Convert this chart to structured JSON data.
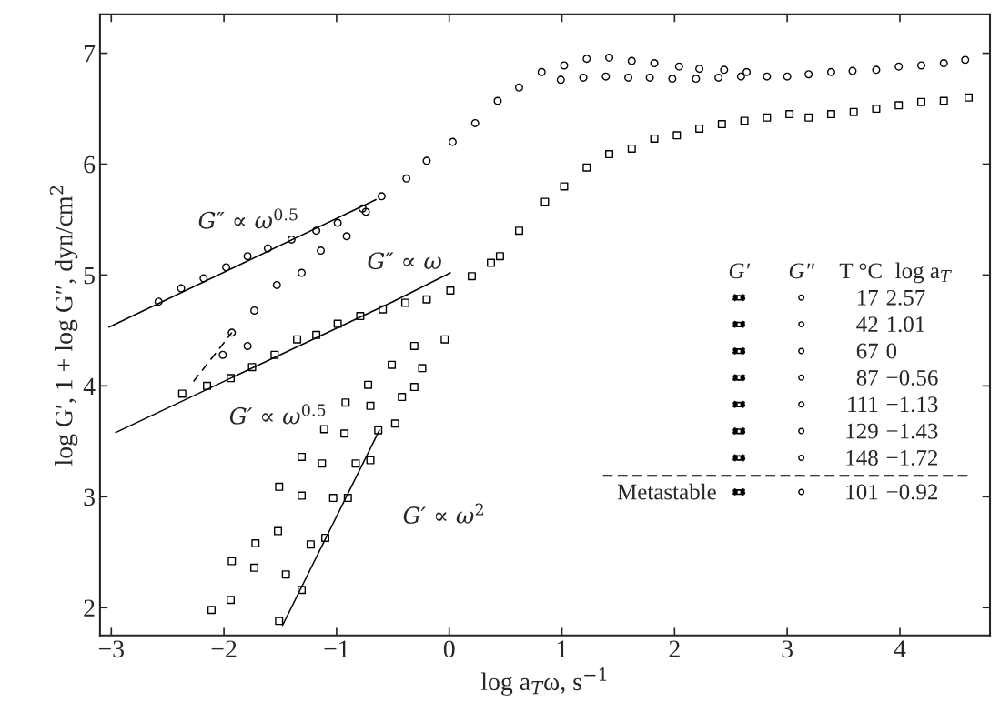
{
  "chart_data": {
    "type": "scatter",
    "xlabel": "log a$_{T}$ω, s$^{−1}$",
    "ylabel": "log G′, 1 + log G″, dyn/cm$^{2}$",
    "xlim": [
      -3.1,
      4.8
    ],
    "ylim": [
      1.75,
      7.35
    ],
    "xticks": [
      {
        "value": -3,
        "label": "−3"
      },
      {
        "value": -2,
        "label": "−2"
      },
      {
        "value": -1,
        "label": "−1"
      },
      0,
      1,
      2,
      3,
      4
    ],
    "yticks": [
      2,
      3,
      4,
      5,
      6,
      7
    ],
    "grid": false,
    "legend": false,
    "series": [
      {
        "marker": "circle",
        "color": "#000000",
        "x": [
          -2.58,
          -2.38,
          -2.18,
          -1.98,
          -1.79,
          -1.61,
          -1.4,
          -1.18,
          -0.99,
          -0.77,
          -0.6,
          -0.38,
          -0.2,
          0.03,
          0.23,
          0.43,
          0.62,
          0.82,
          1.02,
          1.22,
          1.42,
          1.62,
          1.82,
          2.04,
          2.22,
          2.44,
          2.64,
          2.82,
          3.0,
          3.19,
          3.39,
          3.58,
          3.79,
          3.99,
          4.19,
          4.39,
          4.58,
          0.99,
          1.19,
          1.39,
          1.59,
          1.78,
          1.98,
          2.19,
          2.39,
          2.59,
          -2.01,
          -1.79,
          -1.93,
          -1.73,
          -1.53,
          -1.31,
          -1.14,
          -0.91,
          -0.74
        ],
        "values": [
          4.76,
          4.88,
          4.97,
          5.07,
          5.17,
          5.24,
          5.32,
          5.4,
          5.47,
          5.6,
          5.71,
          5.87,
          6.03,
          6.2,
          6.37,
          6.57,
          6.69,
          6.83,
          6.89,
          6.95,
          6.96,
          6.93,
          6.91,
          6.88,
          6.86,
          6.85,
          6.83,
          6.79,
          6.79,
          6.81,
          6.83,
          6.84,
          6.85,
          6.88,
          6.89,
          6.91,
          6.94,
          6.76,
          6.78,
          6.79,
          6.78,
          6.78,
          6.77,
          6.77,
          6.78,
          6.79,
          4.28,
          4.36,
          4.48,
          4.68,
          4.91,
          5.02,
          5.22,
          5.35,
          5.57
        ]
      },
      {
        "marker": "square",
        "color": "#000000",
        "x": [
          -2.37,
          -2.15,
          -1.94,
          -1.75,
          -1.55,
          -1.35,
          -1.18,
          -0.99,
          -0.79,
          -0.59,
          -0.39,
          -0.2,
          0.01,
          0.2,
          0.37,
          0.45,
          0.62,
          0.85,
          1.02,
          1.22,
          1.42,
          1.62,
          1.82,
          2.02,
          2.22,
          2.42,
          2.62,
          2.82,
          3.02,
          3.19,
          3.39,
          3.59,
          3.79,
          3.99,
          4.19,
          4.39,
          4.61,
          -0.31,
          -0.04,
          -0.72,
          -0.51,
          -0.92,
          -1.11,
          -1.31,
          -1.51,
          -1.72,
          -1.93,
          -0.24,
          -0.31,
          -0.42,
          -0.7,
          -0.93,
          -1.13,
          -1.31,
          -1.52,
          -1.73,
          -1.94,
          -2.11,
          -0.48,
          -0.63,
          -0.7,
          -0.83,
          -0.9,
          -1.03,
          -1.1,
          -1.23,
          -1.31,
          -1.45,
          -1.51
        ],
        "values": [
          3.93,
          4.0,
          4.07,
          4.17,
          4.28,
          4.42,
          4.46,
          4.56,
          4.63,
          4.69,
          4.75,
          4.78,
          4.86,
          4.99,
          5.11,
          5.17,
          5.4,
          5.66,
          5.8,
          5.97,
          6.09,
          6.14,
          6.23,
          6.26,
          6.32,
          6.36,
          6.39,
          6.42,
          6.45,
          6.42,
          6.45,
          6.47,
          6.5,
          6.53,
          6.56,
          6.57,
          6.6,
          4.36,
          4.42,
          4.01,
          4.19,
          3.85,
          3.61,
          3.36,
          3.09,
          2.58,
          2.42,
          4.16,
          3.99,
          3.9,
          3.82,
          3.57,
          3.3,
          3.01,
          2.69,
          2.36,
          2.07,
          1.98,
          3.66,
          3.6,
          3.33,
          3.3,
          2.99,
          2.99,
          2.63,
          2.57,
          2.16,
          2.3,
          1.88
        ]
      },
      {
        "type": "line",
        "marker": "none",
        "line_style": "solid",
        "color": "#000000",
        "x": [
          -3.02,
          -0.65
        ],
        "values": [
          4.53,
          5.68
        ]
      },
      {
        "type": "line",
        "marker": "none",
        "line_style": "solid",
        "color": "#000000",
        "x": [
          -2.96,
          -0.5,
          0.01
        ],
        "values": [
          3.58,
          4.76,
          5.02
        ]
      },
      {
        "type": "line",
        "marker": "none",
        "line_style": "solid",
        "color": "#000000",
        "x": [
          -1.48,
          -0.62
        ],
        "values": [
          1.84,
          3.6
        ]
      },
      {
        "type": "line",
        "marker": "none",
        "line_style": "dashed",
        "color": "#000000",
        "x": [
          -2.27,
          -1.93
        ],
        "values": [
          4.04,
          4.48
        ]
      }
    ],
    "annotations": [
      "G″ ∝ ω$^{0.5}$",
      "G″ ∝ ω",
      "G′ ∝ ω$^{0.5}$",
      "G′ ∝ ω$^{2}$",
      "G′",
      "G″",
      "T °C",
      "log a$_{T}$",
      "17",
      "2.57",
      "42",
      "1.01",
      "67",
      "0",
      "87",
      "−0.56",
      "111",
      "−1.13",
      "129",
      "−1.43",
      "148",
      "−1.72",
      "Metastable",
      "101",
      "−0.92"
    ]
  }
}
